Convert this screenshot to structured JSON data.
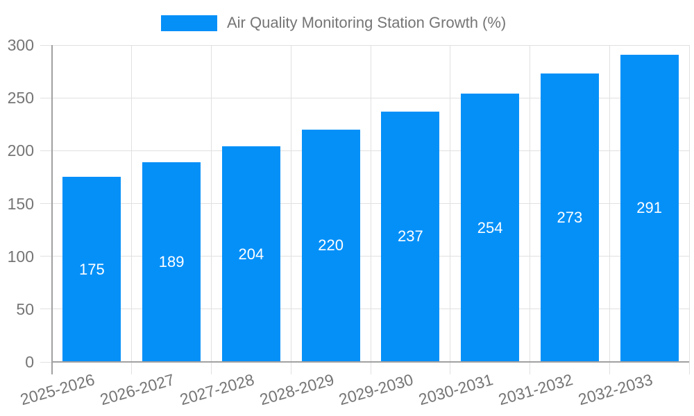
{
  "chart_data": {
    "type": "bar",
    "title": "Air Quality Monitoring Station Growth (%)",
    "categories": [
      "2025-2026",
      "2026-2027",
      "2027-2028",
      "2028-2029",
      "2029-2030",
      "2030-2031",
      "2031-2032",
      "2032-2033"
    ],
    "values": [
      175,
      189,
      204,
      220,
      237,
      254,
      273,
      291
    ],
    "xlabel": "",
    "ylabel": "",
    "ylim": [
      0,
      300
    ],
    "ytick_step": 50,
    "ytick_labels": [
      "0",
      "50",
      "100",
      "150",
      "200",
      "250",
      "300"
    ],
    "grid": "on",
    "legend_position": "top-center",
    "colors": {
      "bar": "#0590F8",
      "value_label": "#ffffff",
      "axis_text": "#757575",
      "grid_line": "#e0e0e0",
      "axis_line": "#a0a0a0",
      "background": "#ffffff"
    }
  }
}
